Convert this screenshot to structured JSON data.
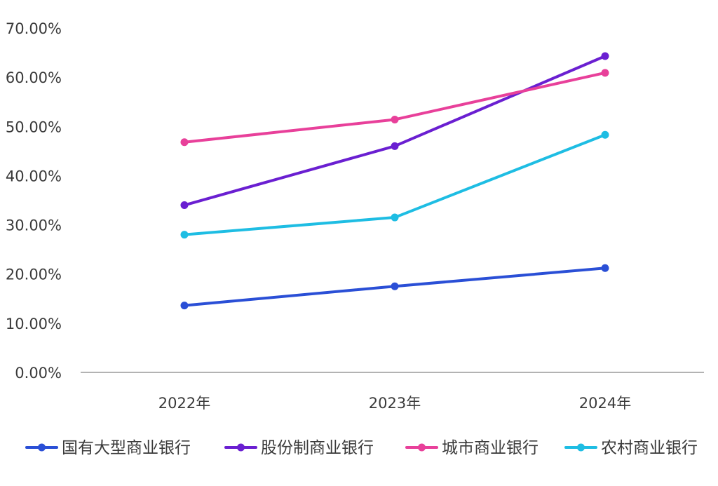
{
  "chart_data": {
    "type": "line",
    "title": "",
    "xlabel": "",
    "ylabel": "",
    "categories": [
      "2022年",
      "2023年",
      "2024年"
    ],
    "ylim": [
      0,
      70
    ],
    "yticks": [
      "0.00%",
      "10.00%",
      "20.00%",
      "30.00%",
      "40.00%",
      "50.00%",
      "60.00%",
      "70.00%"
    ],
    "grid": false,
    "legend_position": "bottom",
    "series": [
      {
        "name": "国有大型商业银行",
        "color": "#2a4fd6",
        "values": [
          13.6,
          17.5,
          21.2
        ]
      },
      {
        "name": "股份制商业银行",
        "color": "#6a1fd1",
        "values": [
          34.0,
          46.0,
          64.3
        ]
      },
      {
        "name": "城市商业银行",
        "color": "#e8409a",
        "values": [
          46.8,
          51.4,
          60.9
        ]
      },
      {
        "name": "农村商业银行",
        "color": "#1ebde3",
        "values": [
          28.0,
          31.5,
          48.3
        ]
      }
    ]
  }
}
